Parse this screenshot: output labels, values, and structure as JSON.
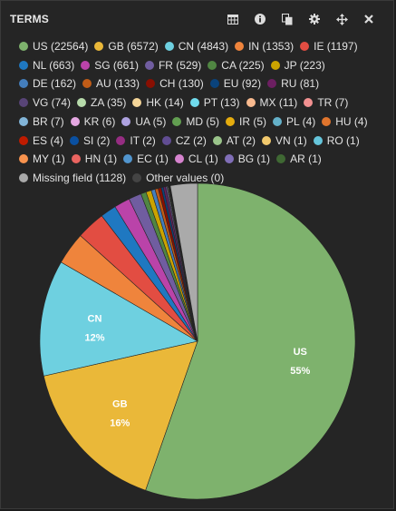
{
  "panel": {
    "title": "TERMS",
    "tools": [
      {
        "name": "table-icon",
        "label": "table"
      },
      {
        "name": "info-icon",
        "label": "info"
      },
      {
        "name": "copy-icon",
        "label": "copy"
      },
      {
        "name": "gear-icon",
        "label": "settings"
      },
      {
        "name": "move-icon",
        "label": "move"
      },
      {
        "name": "close-icon",
        "label": "close"
      }
    ]
  },
  "chart_data": {
    "type": "pie",
    "title": "",
    "legend_position": "top",
    "slices": [
      {
        "label": "US",
        "legend": "US (22564)",
        "value": 22564,
        "color": "#7eb26d",
        "pie_text": "US",
        "pct_text": "55%"
      },
      {
        "label": "GB",
        "legend": "GB (6572)",
        "value": 6572,
        "color": "#eab839",
        "pie_text": "GB",
        "pct_text": "16%"
      },
      {
        "label": "CN",
        "legend": "CN (4843)",
        "value": 4843,
        "color": "#6ed0e0",
        "pie_text": "CN",
        "pct_text": "12%"
      },
      {
        "label": "IN",
        "legend": "IN (1353)",
        "value": 1353,
        "color": "#ef843c"
      },
      {
        "label": "IE",
        "legend": "IE (1197)",
        "value": 1197,
        "color": "#e24d42"
      },
      {
        "label": "NL",
        "legend": "NL (663)",
        "value": 663,
        "color": "#1f78c1"
      },
      {
        "label": "SG",
        "legend": "SG (661)",
        "value": 661,
        "color": "#ba43a9"
      },
      {
        "label": "FR",
        "legend": "FR (529)",
        "value": 529,
        "color": "#705da0"
      },
      {
        "label": "CA",
        "legend": "CA (225)",
        "value": 225,
        "color": "#508642"
      },
      {
        "label": "JP",
        "legend": "JP (223)",
        "value": 223,
        "color": "#cca300"
      },
      {
        "label": "DE",
        "legend": "DE (162)",
        "value": 162,
        "color": "#447ebc"
      },
      {
        "label": "AU",
        "legend": "AU (133)",
        "value": 133,
        "color": "#c15c17"
      },
      {
        "label": "CH",
        "legend": "CH (130)",
        "value": 130,
        "color": "#890f02"
      },
      {
        "label": "EU",
        "legend": "EU (92)",
        "value": 92,
        "color": "#0a437c"
      },
      {
        "label": "RU",
        "legend": "RU (81)",
        "value": 81,
        "color": "#6d1f62"
      },
      {
        "label": "VG",
        "legend": "VG (74)",
        "value": 74,
        "color": "#584477"
      },
      {
        "label": "ZA",
        "legend": "ZA (35)",
        "value": 35,
        "color": "#b7dbab"
      },
      {
        "label": "HK",
        "legend": "HK (14)",
        "value": 14,
        "color": "#f4d598"
      },
      {
        "label": "PT",
        "legend": "PT (13)",
        "value": 13,
        "color": "#70dbed"
      },
      {
        "label": "MX",
        "legend": "MX (11)",
        "value": 11,
        "color": "#f9ba8f"
      },
      {
        "label": "TR",
        "legend": "TR (7)",
        "value": 7,
        "color": "#f29191"
      },
      {
        "label": "BR",
        "legend": "BR (7)",
        "value": 7,
        "color": "#82b5d8"
      },
      {
        "label": "KR",
        "legend": "KR (6)",
        "value": 6,
        "color": "#e5a8e2"
      },
      {
        "label": "UA",
        "legend": "UA (5)",
        "value": 5,
        "color": "#aea2e0"
      },
      {
        "label": "MD",
        "legend": "MD (5)",
        "value": 5,
        "color": "#629e51"
      },
      {
        "label": "IR",
        "legend": "IR (5)",
        "value": 5,
        "color": "#e5ac0e"
      },
      {
        "label": "PL",
        "legend": "PL (4)",
        "value": 4,
        "color": "#64b0c8"
      },
      {
        "label": "HU",
        "legend": "HU (4)",
        "value": 4,
        "color": "#e0752d"
      },
      {
        "label": "ES",
        "legend": "ES (4)",
        "value": 4,
        "color": "#bf1b00"
      },
      {
        "label": "SI",
        "legend": "SI (2)",
        "value": 2,
        "color": "#0a50a1"
      },
      {
        "label": "IT",
        "legend": "IT (2)",
        "value": 2,
        "color": "#962d82"
      },
      {
        "label": "CZ",
        "legend": "CZ (2)",
        "value": 2,
        "color": "#614d93"
      },
      {
        "label": "AT",
        "legend": "AT (2)",
        "value": 2,
        "color": "#9ac48a"
      },
      {
        "label": "VN",
        "legend": "VN (1)",
        "value": 1,
        "color": "#f2c96d"
      },
      {
        "label": "RO",
        "legend": "RO (1)",
        "value": 1,
        "color": "#65c5db"
      },
      {
        "label": "MY",
        "legend": "MY (1)",
        "value": 1,
        "color": "#f9934e"
      },
      {
        "label": "HN",
        "legend": "HN (1)",
        "value": 1,
        "color": "#ea6460"
      },
      {
        "label": "EC",
        "legend": "EC (1)",
        "value": 1,
        "color": "#5195ce"
      },
      {
        "label": "CL",
        "legend": "CL (1)",
        "value": 1,
        "color": "#d683ce"
      },
      {
        "label": "BG",
        "legend": "BG (1)",
        "value": 1,
        "color": "#806eb7"
      },
      {
        "label": "AR",
        "legend": "AR (1)",
        "value": 1,
        "color": "#3f6833"
      },
      {
        "label": "Missing field",
        "legend": "Missing field (1128)",
        "value": 1128,
        "color": "#aaaaaa"
      },
      {
        "label": "Other values",
        "legend": "Other values (0)",
        "value": 0,
        "color": "#444444"
      }
    ]
  }
}
